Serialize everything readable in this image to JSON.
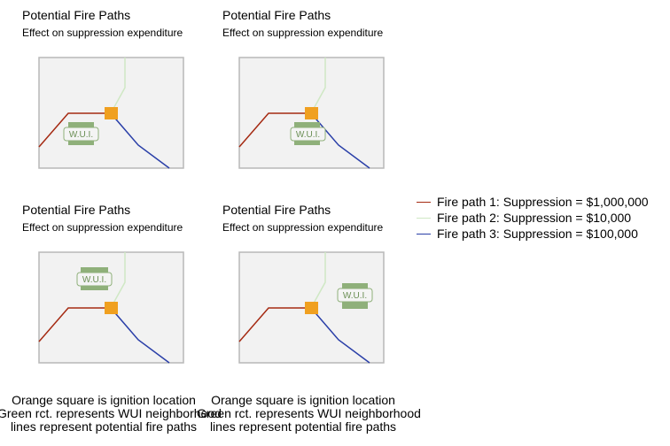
{
  "panels": [
    {
      "title": "Potential Fire Paths",
      "subtitle": "Effect on suppression expenditure",
      "wui_label": "W.U.I."
    },
    {
      "title": "Potential Fire Paths",
      "subtitle": "Effect on suppression expenditure",
      "wui_label": "W.U.I."
    },
    {
      "title": "Potential Fire Paths",
      "subtitle": "Effect on suppression expenditure",
      "wui_label": "W.U.I."
    },
    {
      "title": "Potential Fire Paths",
      "subtitle": "Effect on suppression expenditure",
      "wui_label": "W.U.I."
    }
  ],
  "captions": [
    {
      "line1": "Orange square is ignition location",
      "line2": "Green rct. represents WUI neighborhood",
      "line3": "lines represent potential fire paths"
    },
    {
      "line1": "Orange square is ignition location",
      "line2": "Green rct. represents WUI neighborhood",
      "line3": "lines represent potential fire paths"
    }
  ],
  "legend": [
    {
      "label": "Fire path 1: Suppression = $1,000,000",
      "color": "#a52a12"
    },
    {
      "label": "Fire path 2: Suppression = $10,000",
      "color": "#cfe8c4"
    },
    {
      "label": "Fire path 3: Suppression = $100,000",
      "color": "#2a3fa8"
    }
  ],
  "colors": {
    "ignition": "#f0a020",
    "wui": "#8fb07a",
    "map_background": "#f2f2f2",
    "map_border": "#b8b8b8"
  }
}
